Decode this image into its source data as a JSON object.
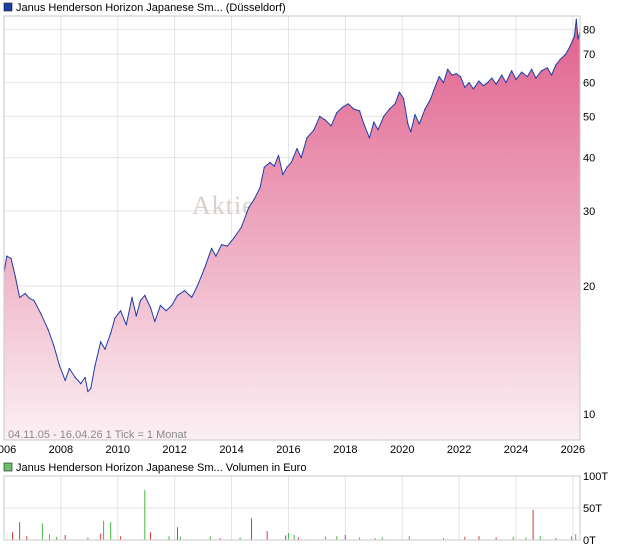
{
  "price_panel": {
    "legend_text": "Janus Henderson Horizon Japanese Sm... (Düsseldorf)",
    "legend_color": "#1f3da8",
    "info_text": "04.11.05 - 16.04.26   1 Tick = 1 Monat",
    "watermark": "Aktie"
  },
  "volume_panel": {
    "legend_text": "Janus Henderson Horizon Japanese Sm... Volumen in Euro",
    "legend_color": "#6cc06c"
  },
  "colors": {
    "line": "#1f3da8",
    "fill_top": "#e0608c",
    "fill_bottom": "#fbf0f4",
    "vol_up": "#44b844",
    "vol_down": "#d83a3a",
    "grid": "#e4e4e4"
  },
  "chart_data": [
    {
      "type": "area",
      "scale": "log",
      "ylim": [
        8.7,
        86
      ],
      "yticks": [
        10,
        20,
        30,
        40,
        50,
        60,
        70,
        80
      ],
      "ytick_labels": [
        "10",
        "20",
        "30",
        "40",
        "50",
        "60",
        "70",
        "80"
      ],
      "xlim": [
        2006.0,
        2026.25
      ],
      "xticks": [
        2006,
        2008,
        2010,
        2012,
        2014,
        2016,
        2018,
        2020,
        2022,
        2024,
        2026
      ],
      "xtick_labels": [
        "2006",
        "2008",
        "2010",
        "2012",
        "2014",
        "2016",
        "2018",
        "2020",
        "2022",
        "2024",
        "2026"
      ],
      "grid": true,
      "series": [
        {
          "name": "Janus Henderson Horizon Japanese Sm... (Düsseldorf)",
          "points": [
            [
              2006.0,
              21.5
            ],
            [
              2006.1,
              23.5
            ],
            [
              2006.25,
              23.2
            ],
            [
              2006.4,
              21.0
            ],
            [
              2006.55,
              18.8
            ],
            [
              2006.75,
              19.2
            ],
            [
              2006.9,
              18.7
            ],
            [
              2007.05,
              18.5
            ],
            [
              2007.3,
              17.2
            ],
            [
              2007.55,
              15.8
            ],
            [
              2007.75,
              14.5
            ],
            [
              2007.95,
              13.0
            ],
            [
              2008.15,
              12.0
            ],
            [
              2008.3,
              12.8
            ],
            [
              2008.5,
              12.2
            ],
            [
              2008.7,
              11.8
            ],
            [
              2008.85,
              12.2
            ],
            [
              2008.95,
              11.3
            ],
            [
              2009.05,
              11.5
            ],
            [
              2009.2,
              13.0
            ],
            [
              2009.4,
              14.8
            ],
            [
              2009.55,
              14.2
            ],
            [
              2009.75,
              15.5
            ],
            [
              2009.9,
              16.8
            ],
            [
              2010.1,
              17.5
            ],
            [
              2010.3,
              16.2
            ],
            [
              2010.5,
              18.8
            ],
            [
              2010.65,
              17.0
            ],
            [
              2010.8,
              18.5
            ],
            [
              2010.95,
              19.0
            ],
            [
              2011.15,
              17.8
            ],
            [
              2011.3,
              16.5
            ],
            [
              2011.5,
              18.0
            ],
            [
              2011.7,
              17.5
            ],
            [
              2011.9,
              18.0
            ],
            [
              2012.1,
              19.0
            ],
            [
              2012.35,
              19.5
            ],
            [
              2012.6,
              18.8
            ],
            [
              2012.8,
              20.0
            ],
            [
              2013.05,
              22.0
            ],
            [
              2013.3,
              24.5
            ],
            [
              2013.45,
              23.5
            ],
            [
              2013.65,
              25.0
            ],
            [
              2013.85,
              24.8
            ],
            [
              2014.1,
              26.0
            ],
            [
              2014.35,
              27.5
            ],
            [
              2014.6,
              30.5
            ],
            [
              2014.8,
              32.0
            ],
            [
              2015.0,
              34.0
            ],
            [
              2015.15,
              38.0
            ],
            [
              2015.35,
              39.0
            ],
            [
              2015.5,
              38.2
            ],
            [
              2015.65,
              40.5
            ],
            [
              2015.8,
              36.5
            ],
            [
              2015.95,
              38.0
            ],
            [
              2016.1,
              39.0
            ],
            [
              2016.3,
              42.0
            ],
            [
              2016.45,
              40.0
            ],
            [
              2016.65,
              44.5
            ],
            [
              2016.9,
              46.5
            ],
            [
              2017.1,
              50.0
            ],
            [
              2017.3,
              49.0
            ],
            [
              2017.5,
              47.5
            ],
            [
              2017.7,
              51.0
            ],
            [
              2017.9,
              52.5
            ],
            [
              2018.1,
              53.5
            ],
            [
              2018.3,
              52.0
            ],
            [
              2018.5,
              51.5
            ],
            [
              2018.65,
              48.0
            ],
            [
              2018.85,
              44.5
            ],
            [
              2019.0,
              48.5
            ],
            [
              2019.15,
              46.5
            ],
            [
              2019.35,
              50.0
            ],
            [
              2019.55,
              52.0
            ],
            [
              2019.75,
              53.5
            ],
            [
              2019.9,
              57.0
            ],
            [
              2020.05,
              55.0
            ],
            [
              2020.2,
              48.0
            ],
            [
              2020.3,
              46.0
            ],
            [
              2020.45,
              50.5
            ],
            [
              2020.6,
              48.0
            ],
            [
              2020.8,
              52.0
            ],
            [
              2021.0,
              55.0
            ],
            [
              2021.15,
              58.5
            ],
            [
              2021.3,
              62.0
            ],
            [
              2021.45,
              60.0
            ],
            [
              2021.6,
              64.5
            ],
            [
              2021.75,
              62.5
            ],
            [
              2021.9,
              63.0
            ],
            [
              2022.05,
              62.0
            ],
            [
              2022.2,
              58.5
            ],
            [
              2022.35,
              60.0
            ],
            [
              2022.5,
              58.0
            ],
            [
              2022.7,
              60.5
            ],
            [
              2022.85,
              59.0
            ],
            [
              2023.0,
              60.0
            ],
            [
              2023.15,
              61.5
            ],
            [
              2023.3,
              59.5
            ],
            [
              2023.5,
              62.5
            ],
            [
              2023.65,
              60.0
            ],
            [
              2023.85,
              64.0
            ],
            [
              2024.0,
              61.0
            ],
            [
              2024.2,
              63.5
            ],
            [
              2024.4,
              62.0
            ],
            [
              2024.55,
              64.5
            ],
            [
              2024.7,
              61.5
            ],
            [
              2024.9,
              64.0
            ],
            [
              2025.1,
              65.0
            ],
            [
              2025.25,
              62.5
            ],
            [
              2025.4,
              66.0
            ],
            [
              2025.55,
              68.0
            ],
            [
              2025.75,
              70.0
            ],
            [
              2025.9,
              73.0
            ],
            [
              2026.05,
              77.0
            ],
            [
              2026.12,
              84.5
            ],
            [
              2026.18,
              76.0
            ],
            [
              2026.25,
              79.0
            ]
          ]
        }
      ]
    },
    {
      "type": "bar",
      "ylim": [
        0,
        100
      ],
      "yticks": [
        0,
        50,
        100
      ],
      "ytick_labels": [
        "0T",
        "50T",
        "100T"
      ],
      "unit": "T",
      "series": [
        {
          "name": "Janus Henderson Horizon Japanese Sm... Volumen in Euro",
          "points": [
            [
              2006.3,
              12,
              "down"
            ],
            [
              2006.55,
              28,
              "down"
            ],
            [
              2006.8,
              6,
              "down"
            ],
            [
              2007.35,
              26,
              "up"
            ],
            [
              2007.6,
              9,
              "up"
            ],
            [
              2007.85,
              5,
              "up"
            ],
            [
              2008.15,
              8,
              "down"
            ],
            [
              2008.95,
              4,
              "up"
            ],
            [
              2009.4,
              10,
              "down"
            ],
            [
              2009.5,
              30,
              "up"
            ],
            [
              2009.75,
              28,
              "up"
            ],
            [
              2010.1,
              6,
              "down"
            ],
            [
              2010.95,
              78,
              "up"
            ],
            [
              2011.15,
              12,
              "down"
            ],
            [
              2011.8,
              6,
              "up"
            ],
            [
              2012.1,
              20,
              "down"
            ],
            [
              2012.2,
              5,
              "up"
            ],
            [
              2013.25,
              6,
              "up"
            ],
            [
              2013.6,
              3,
              "down"
            ],
            [
              2014.3,
              4,
              "up"
            ],
            [
              2014.7,
              34,
              "down"
            ],
            [
              2015.25,
              14,
              "down"
            ],
            [
              2015.9,
              7,
              "down"
            ],
            [
              2016.0,
              11,
              "up"
            ],
            [
              2016.2,
              8,
              "up"
            ],
            [
              2016.35,
              4,
              "down"
            ],
            [
              2017.3,
              5,
              "up"
            ],
            [
              2017.7,
              6,
              "up"
            ],
            [
              2018.0,
              8,
              "down"
            ],
            [
              2018.5,
              4,
              "up"
            ],
            [
              2019.05,
              3,
              "up"
            ],
            [
              2019.3,
              4,
              "up"
            ],
            [
              2020.25,
              6,
              "up"
            ],
            [
              2021.45,
              3,
              "up"
            ],
            [
              2022.2,
              5,
              "down"
            ],
            [
              2022.7,
              6,
              "down"
            ],
            [
              2023.3,
              4,
              "down"
            ],
            [
              2023.9,
              5,
              "up"
            ],
            [
              2024.35,
              4,
              "up"
            ],
            [
              2024.6,
              47,
              "down"
            ],
            [
              2024.85,
              6,
              "up"
            ],
            [
              2025.4,
              3,
              "down"
            ],
            [
              2025.95,
              6,
              "up"
            ],
            [
              2026.1,
              9,
              "up"
            ]
          ]
        }
      ]
    }
  ]
}
